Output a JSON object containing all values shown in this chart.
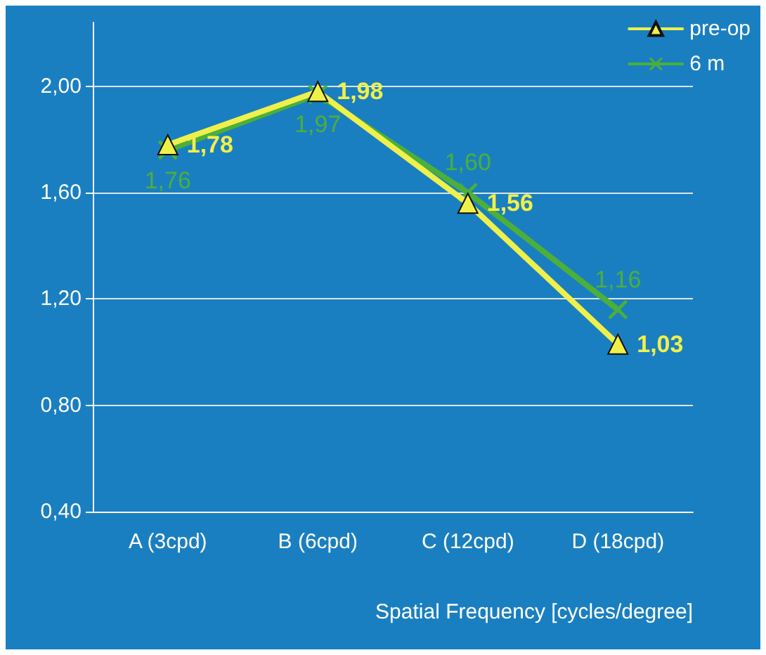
{
  "chart_data": {
    "type": "line",
    "xlabel": "Spatial Frequency [cycles/degree]",
    "categories": [
      "A (3cpd)",
      "B (6cpd)",
      "C (12cpd)",
      "D (18cpd)"
    ],
    "series": [
      {
        "name": "pre-op",
        "color": "#f0f04a",
        "marker": "triangle",
        "values": [
          1.78,
          1.98,
          1.56,
          1.03
        ],
        "value_labels": [
          "1,78",
          "1,98",
          "1,56",
          "1,03"
        ]
      },
      {
        "name": "6 m",
        "color": "#4caf3a",
        "marker": "cross",
        "values": [
          1.76,
          1.97,
          1.6,
          1.16
        ],
        "value_labels": [
          "1,76",
          "1,97",
          "1,60",
          "1,16"
        ]
      }
    ],
    "ylim": [
      0.4,
      2.24
    ],
    "yticks": [
      {
        "value": 0.4,
        "label": "0,40"
      },
      {
        "value": 0.8,
        "label": "0,80"
      },
      {
        "value": 1.2,
        "label": "1,20"
      },
      {
        "value": 1.6,
        "label": "1,60"
      },
      {
        "value": 2.0,
        "label": "2,00"
      }
    ],
    "grid": "y",
    "legend": "top right",
    "line_style": "solid"
  }
}
